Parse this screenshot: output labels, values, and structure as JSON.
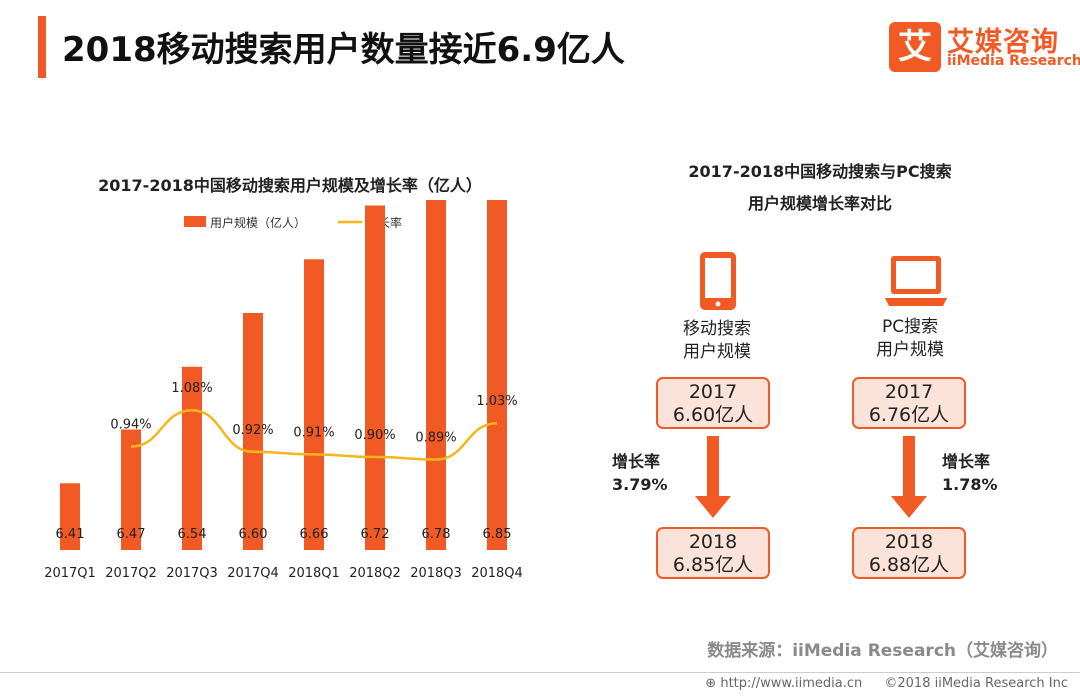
{
  "header": {
    "title": "2018移动搜索用户数量接近6.9亿人",
    "logo_cn": "艾媒咨询",
    "logo_en": "iiMedia Research",
    "logo_char": "艾"
  },
  "colors": {
    "accent": "#f15a24",
    "line": "#f5b61a",
    "box_fill": "#fbe3da"
  },
  "chart_data": [
    {
      "type": "bar",
      "title": "2017-2018中国移动搜索用户规模及增长率（亿人）",
      "categories": [
        "2017Q1",
        "2017Q2",
        "2017Q3",
        "2017Q4",
        "2018Q1",
        "2018Q2",
        "2018Q3",
        "2018Q4"
      ],
      "series": [
        {
          "name": "用户规模（亿人）",
          "type": "bar",
          "values": [
            6.41,
            6.47,
            6.54,
            6.6,
            6.66,
            6.72,
            6.78,
            6.85
          ],
          "labels": [
            "6.41",
            "6.47",
            "6.54",
            "6.60",
            "6.66",
            "6.72",
            "6.78",
            "6.85"
          ]
        },
        {
          "name": "增长率",
          "type": "line",
          "values": [
            null,
            0.94,
            1.08,
            0.92,
            0.91,
            0.9,
            0.89,
            1.03
          ],
          "labels": [
            "",
            "0.94%",
            "1.08%",
            "0.92%",
            "0.91%",
            "0.90%",
            "0.89%",
            "1.03%"
          ]
        }
      ],
      "xlabel": "",
      "ylabel": "",
      "legend": "top-center",
      "grid": false
    },
    {
      "type": "table",
      "title": [
        "2017-2018中国移动搜索与PC搜索",
        "用户规模增长率对比"
      ],
      "groups": [
        {
          "icon": "smartphone-icon",
          "label": [
            "移动搜索",
            "用户规模"
          ],
          "y2017": "2017",
          "v2017": "6.60亿人",
          "y2018": "2018",
          "v2018": "6.85亿人",
          "growth_label": "增长率",
          "growth": "3.79%"
        },
        {
          "icon": "laptop-icon",
          "label": [
            "PC搜索",
            "用户规模"
          ],
          "y2017": "2017",
          "v2017": "6.76亿人",
          "y2018": "2018",
          "v2018": "6.88亿人",
          "growth_label": "增长率",
          "growth": "1.78%"
        }
      ]
    }
  ],
  "footer": {
    "source": "数据来源：iiMedia Research（艾媒咨询）",
    "url": "http://www.iimedia.cn",
    "copyright": "©2018  iiMedia Research  Inc"
  }
}
